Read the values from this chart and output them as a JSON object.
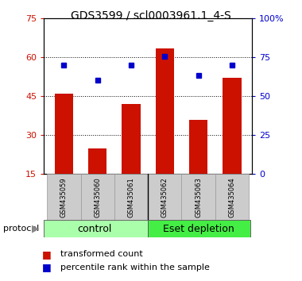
{
  "title": "GDS3599 / scl0003961.1_4-S",
  "samples": [
    "GSM435059",
    "GSM435060",
    "GSM435061",
    "GSM435062",
    "GSM435063",
    "GSM435064"
  ],
  "red_values": [
    46.0,
    25.0,
    42.0,
    63.5,
    36.0,
    52.0
  ],
  "blue_values": [
    70.0,
    60.5,
    70.0,
    75.5,
    63.5,
    70.0
  ],
  "left_ylim": [
    15,
    75
  ],
  "right_ylim": [
    0,
    100
  ],
  "left_yticks": [
    15,
    30,
    45,
    60,
    75
  ],
  "right_yticks": [
    0,
    25,
    50,
    75,
    100
  ],
  "right_yticklabels": [
    "0",
    "25",
    "50",
    "75",
    "100%"
  ],
  "bar_color": "#cc1100",
  "dot_color": "#0000cc",
  "control_color": "#aaffaa",
  "eset_color": "#44ee44",
  "protocol_label": "protocol",
  "legend_red": "transformed count",
  "legend_blue": "percentile rank within the sample",
  "title_fontsize": 10,
  "tick_label_fontsize": 8,
  "sample_fontsize": 6,
  "group_fontsize": 9,
  "legend_fontsize": 8
}
